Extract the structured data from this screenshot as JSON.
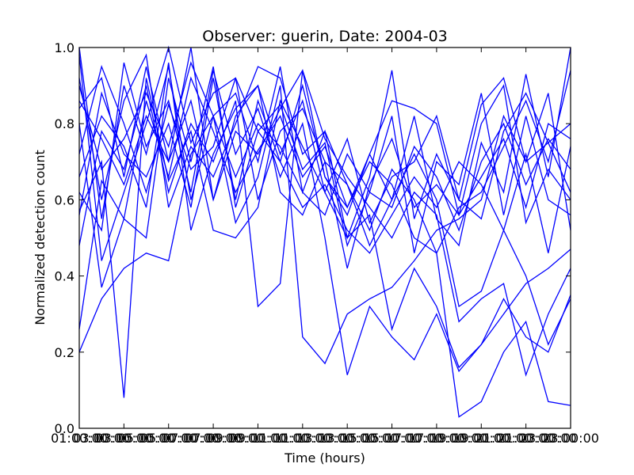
{
  "chart_data": {
    "type": "line",
    "title": "Observer: guerin, Date: 2004-03",
    "xlabel": "Time (hours)",
    "ylabel": "Normalized detection count",
    "xlim": [
      1,
      23
    ],
    "ylim": [
      0.0,
      1.0
    ],
    "x_ticks": [
      {
        "value": 1,
        "label": "01:00:00"
      },
      {
        "value": 3,
        "label": "03:00:00"
      },
      {
        "value": 5,
        "label": "05:00:00"
      },
      {
        "value": 7,
        "label": "07:00:00"
      },
      {
        "value": 9,
        "label": "09:00:00"
      },
      {
        "value": 11,
        "label": "11:00:00"
      },
      {
        "value": 13,
        "label": "13:00:00"
      },
      {
        "value": 15,
        "label": "15:00:00"
      },
      {
        "value": 17,
        "label": "17:00:00"
      },
      {
        "value": 19,
        "label": "19:00:00"
      },
      {
        "value": 21,
        "label": "21:00:00"
      },
      {
        "value": 23,
        "label": "23:00:00"
      }
    ],
    "x_overlap_labels": [
      {
        "value": 2,
        "label": "03:00:00"
      },
      {
        "value": 4,
        "label": "05:00:00"
      },
      {
        "value": 6,
        "label": "07:00:00"
      },
      {
        "value": 8,
        "label": "09:00:00"
      },
      {
        "value": 10,
        "label": "11:00:00"
      },
      {
        "value": 12,
        "label": "13:00:00"
      },
      {
        "value": 14,
        "label": "15:00:00"
      },
      {
        "value": 16,
        "label": "17:00:00"
      },
      {
        "value": 18,
        "label": "19:00:00"
      },
      {
        "value": 20,
        "label": "21:00:00"
      },
      {
        "value": 22,
        "label": "23:00:00"
      }
    ],
    "y_ticks": [
      {
        "value": 0.0,
        "label": "0.0"
      },
      {
        "value": 0.2,
        "label": "0.2"
      },
      {
        "value": 0.4,
        "label": "0.4"
      },
      {
        "value": 0.6,
        "label": "0.6"
      },
      {
        "value": 0.8,
        "label": "0.8"
      },
      {
        "value": 1.0,
        "label": "1.0"
      }
    ],
    "grid": false,
    "line_color": "#0000ff",
    "x": [
      1,
      2,
      3,
      4,
      5,
      6,
      7,
      8,
      9,
      10,
      11,
      12,
      13,
      14,
      15,
      16,
      17,
      18,
      19,
      20,
      21,
      22,
      23
    ],
    "series": [
      {
        "values": [
          1.0,
          0.55,
          0.9,
          0.72,
          0.95,
          0.6,
          0.82,
          0.88,
          0.7,
          0.95,
          0.62,
          0.78,
          0.5,
          0.66,
          0.94,
          0.55,
          0.72,
          0.6,
          0.85,
          0.92,
          0.7,
          0.88,
          0.52
        ]
      },
      {
        "values": [
          0.98,
          0.44,
          0.62,
          0.8,
          1.0,
          0.75,
          0.88,
          0.92,
          0.78,
          0.7,
          0.9,
          0.66,
          0.58,
          0.72,
          0.6,
          0.82,
          0.55,
          0.48,
          0.75,
          0.62,
          0.93,
          0.66,
          1.0
        ]
      },
      {
        "values": [
          0.84,
          0.92,
          0.66,
          0.95,
          0.7,
          1.0,
          0.6,
          0.82,
          0.9,
          0.72,
          0.86,
          0.62,
          0.76,
          0.54,
          0.66,
          0.7,
          0.82,
          0.6,
          0.55,
          0.78,
          0.88,
          0.75,
          0.62
        ]
      },
      {
        "values": [
          0.26,
          0.65,
          0.55,
          0.5,
          0.92,
          0.7,
          0.95,
          0.58,
          0.78,
          0.85,
          0.68,
          0.75,
          0.48,
          0.62,
          0.58,
          0.74,
          0.66,
          0.52,
          0.7,
          0.8,
          0.64,
          0.76,
          0.68
        ]
      },
      {
        "values": [
          0.2,
          0.34,
          0.42,
          0.46,
          0.44,
          0.72,
          0.82,
          0.54,
          0.66,
          0.9,
          0.24,
          0.17,
          0.3,
          0.34,
          0.37,
          0.44,
          0.52,
          0.55,
          0.6,
          0.82,
          0.7,
          0.75,
          0.8
        ]
      },
      {
        "values": [
          0.57,
          0.7,
          0.08,
          0.92,
          0.65,
          0.78,
          0.52,
          0.5,
          0.58,
          0.86,
          0.74,
          0.62,
          0.5,
          0.56,
          0.26,
          0.42,
          0.32,
          0.16,
          0.22,
          0.3,
          0.38,
          0.42,
          0.47
        ]
      },
      {
        "values": [
          0.92,
          0.6,
          0.86,
          0.98,
          0.58,
          0.74,
          0.66,
          0.8,
          0.95,
          0.92,
          0.72,
          0.78,
          0.64,
          0.52,
          0.68,
          0.6,
          0.46,
          0.58,
          0.62,
          0.74,
          0.86,
          0.7,
          0.94
        ]
      },
      {
        "values": [
          0.66,
          0.82,
          0.74,
          0.58,
          0.96,
          0.52,
          0.72,
          0.84,
          0.9,
          0.62,
          0.56,
          0.7,
          0.42,
          0.64,
          0.76,
          0.58,
          0.64,
          0.56,
          0.8,
          0.9,
          0.54,
          0.68,
          0.6
        ]
      },
      {
        "values": [
          0.8,
          0.37,
          0.55,
          0.86,
          0.66,
          0.92,
          0.78,
          0.62,
          0.73,
          0.82,
          0.66,
          0.74,
          0.58,
          0.7,
          0.64,
          0.5,
          0.46,
          0.03,
          0.07,
          0.2,
          0.28,
          0.07,
          0.06
        ]
      },
      {
        "values": [
          0.72,
          0.95,
          0.8,
          0.62,
          0.85,
          0.68,
          0.74,
          0.92,
          0.6,
          0.78,
          0.84,
          0.7,
          0.64,
          0.48,
          0.6,
          0.72,
          0.6,
          0.32,
          0.36,
          0.52,
          0.4,
          0.22,
          0.34
        ]
      },
      {
        "values": [
          0.48,
          0.78,
          0.68,
          0.9,
          0.62,
          0.8,
          0.7,
          0.86,
          0.32,
          0.38,
          0.94,
          0.76,
          0.66,
          0.58,
          0.5,
          0.62,
          0.56,
          0.28,
          0.34,
          0.38,
          0.14,
          0.3,
          0.42
        ]
      },
      {
        "values": [
          0.9,
          0.68,
          0.76,
          0.88,
          0.74,
          0.96,
          0.82,
          0.66,
          0.8,
          0.74,
          0.62,
          0.56,
          0.72,
          0.62,
          0.82,
          0.46,
          0.7,
          0.64,
          0.88,
          0.56,
          0.82,
          0.6,
          0.56
        ]
      },
      {
        "values": [
          0.62,
          0.52,
          0.96,
          0.74,
          0.86,
          0.62,
          0.94,
          0.72,
          0.84,
          0.66,
          0.8,
          0.5,
          0.14,
          0.32,
          0.24,
          0.18,
          0.3,
          0.15,
          0.22,
          0.34,
          0.24,
          0.2,
          0.35
        ]
      },
      {
        "values": [
          0.86,
          0.76,
          0.64,
          0.82,
          0.7,
          0.86,
          0.6,
          0.78,
          0.72,
          0.84,
          0.94,
          0.66,
          0.56,
          0.72,
          0.86,
          0.84,
          0.8,
          0.56,
          0.66,
          0.76,
          0.58,
          0.8,
          0.76
        ]
      },
      {
        "values": [
          0.56,
          0.88,
          0.72,
          0.66,
          0.8,
          0.58,
          0.92,
          0.6,
          0.86,
          0.7,
          0.58,
          0.64,
          0.52,
          0.46,
          0.56,
          0.66,
          0.58,
          0.7,
          0.64,
          0.52,
          0.72,
          0.46,
          0.74
        ]
      }
    ]
  }
}
